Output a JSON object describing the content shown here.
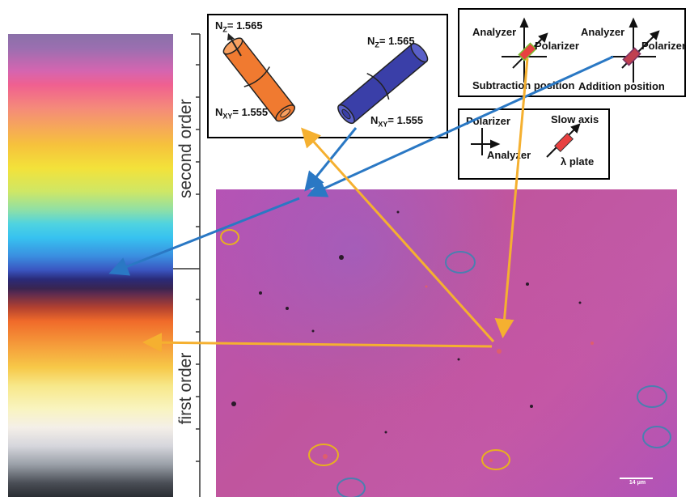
{
  "color_scale": {
    "second_order_label": "second order",
    "first_order_label": "first order"
  },
  "fiber_box": {
    "left_fiber": {
      "nz_label": "N",
      "nz_sub": "Z",
      "nz_value": "= 1.565",
      "nxy_label": "N",
      "nxy_sub": "XY",
      "nxy_value": "= 1.555",
      "color": "#f07a30"
    },
    "right_fiber": {
      "nz_label": "N",
      "nz_sub": "Z",
      "nz_value": "= 1.565",
      "nxy_label": "N",
      "nxy_sub": "XY",
      "nxy_value": "= 1.555",
      "color": "#3a3fa8"
    }
  },
  "position_box": {
    "subtraction": {
      "analyzer": "Analyzer",
      "polarizer": "Polarizer",
      "caption": "Subtraction position"
    },
    "addition": {
      "analyzer": "Analyzer",
      "polarizer": "Polarizer",
      "caption": "Addition position"
    }
  },
  "plate_box": {
    "polarizer": "Polarizer",
    "analyzer": "Analyzer",
    "slow_axis": "Slow axis",
    "plate": "λ plate"
  },
  "micrograph": {
    "scale_bar": "14 μm"
  },
  "colors": {
    "blue_arrow": "#2a78c4",
    "orange_arrow": "#f5b030",
    "blue_circle": "#4a7fb0",
    "orange_circle": "#e8b020"
  }
}
